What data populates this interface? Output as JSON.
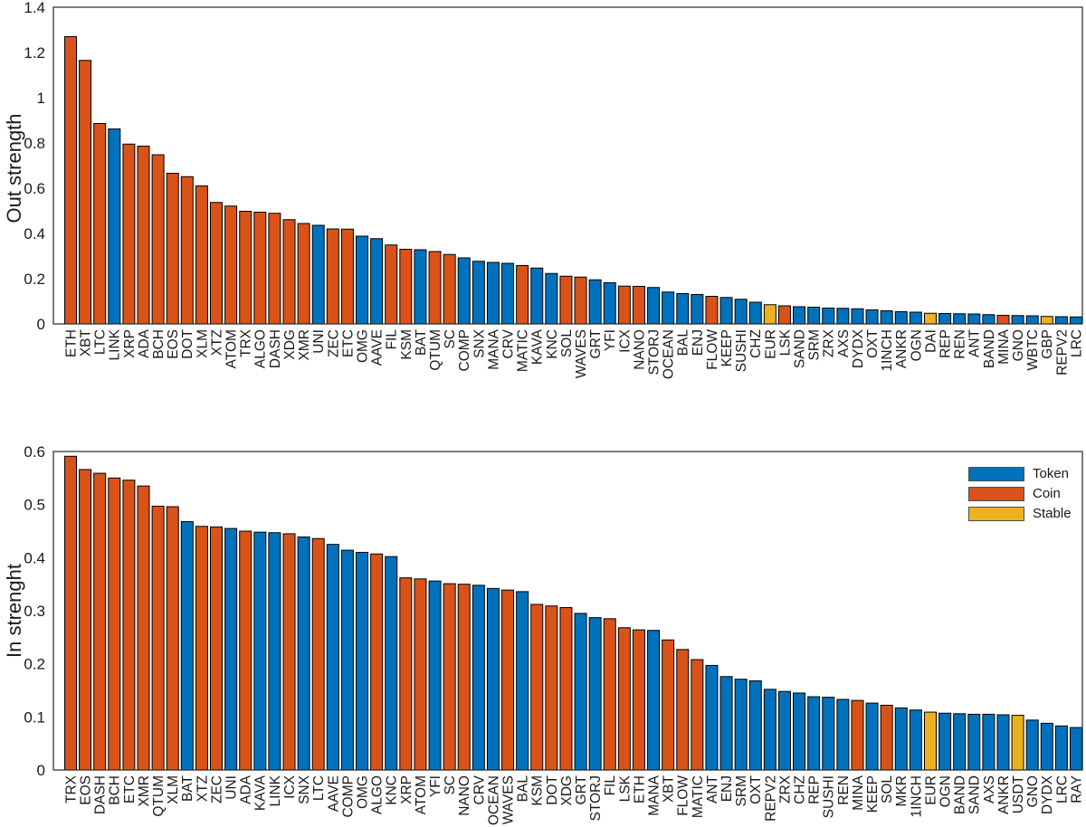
{
  "colors": {
    "token": "#0072BD",
    "coin": "#D95319",
    "stable": "#EDB120",
    "bar_edge": "#000000",
    "axis_box": "#262626"
  },
  "legend": {
    "position": "top-right-of-bottom-chart",
    "items": [
      {
        "label": "Token",
        "color_key": "token"
      },
      {
        "label": "Coin",
        "color_key": "coin"
      },
      {
        "label": "Stable",
        "color_key": "stable"
      }
    ]
  },
  "chart_data": [
    {
      "type": "bar",
      "title": "",
      "xlabel": "",
      "ylabel": "Out strength",
      "ylim": [
        0,
        1.4
      ],
      "yticks": [
        0,
        0.2,
        0.4,
        0.6,
        0.8,
        1,
        1.2,
        1.4
      ],
      "yticklabels": [
        "0",
        "0.2",
        "0.4",
        "0.6",
        "0.8",
        "1",
        "1.2",
        "1.4"
      ],
      "grid": false,
      "categories": [
        "ETH",
        "XBT",
        "LTC",
        "LINK",
        "XRP",
        "ADA",
        "BCH",
        "EOS",
        "DOT",
        "XLM",
        "XTZ",
        "ATOM",
        "TRX",
        "ALGO",
        "DASH",
        "XDG",
        "XMR",
        "UNI",
        "ZEC",
        "ETC",
        "OMG",
        "AAVE",
        "FIL",
        "KSM",
        "BAT",
        "QTUM",
        "SC",
        "COMP",
        "SNX",
        "MANA",
        "CRV",
        "MATIC",
        "KAVA",
        "KNC",
        "SOL",
        "WAVES",
        "GRT",
        "YFI",
        "ICX",
        "NANO",
        "STORJ",
        "OCEAN",
        "BAL",
        "ENJ",
        "FLOW",
        "KEEP",
        "SUSHI",
        "CHZ",
        "EUR",
        "LSK",
        "SAND",
        "SRM",
        "ZRX",
        "AXS",
        "DYDX",
        "OXT",
        "1INCH",
        "ANKR",
        "OGN",
        "DAI",
        "REP",
        "REN",
        "ANT",
        "BAND",
        "MINA",
        "GNO",
        "WBTC",
        "GBP",
        "REPV2",
        "LRC"
      ],
      "values": [
        1.27,
        1.165,
        0.886,
        0.862,
        0.795,
        0.786,
        0.748,
        0.666,
        0.651,
        0.61,
        0.537,
        0.521,
        0.498,
        0.494,
        0.489,
        0.461,
        0.444,
        0.436,
        0.42,
        0.419,
        0.388,
        0.377,
        0.349,
        0.33,
        0.328,
        0.32,
        0.307,
        0.292,
        0.277,
        0.272,
        0.268,
        0.258,
        0.247,
        0.223,
        0.211,
        0.207,
        0.195,
        0.182,
        0.167,
        0.166,
        0.161,
        0.141,
        0.134,
        0.13,
        0.122,
        0.117,
        0.109,
        0.096,
        0.085,
        0.08,
        0.076,
        0.074,
        0.07,
        0.069,
        0.067,
        0.062,
        0.058,
        0.054,
        0.052,
        0.047,
        0.046,
        0.045,
        0.044,
        0.041,
        0.038,
        0.037,
        0.036,
        0.033,
        0.032,
        0.031
      ],
      "types": [
        "coin",
        "coin",
        "coin",
        "token",
        "coin",
        "coin",
        "coin",
        "coin",
        "coin",
        "coin",
        "coin",
        "coin",
        "coin",
        "coin",
        "coin",
        "coin",
        "coin",
        "token",
        "coin",
        "coin",
        "token",
        "token",
        "coin",
        "coin",
        "token",
        "coin",
        "coin",
        "token",
        "token",
        "token",
        "token",
        "coin",
        "token",
        "token",
        "coin",
        "coin",
        "token",
        "token",
        "coin",
        "coin",
        "token",
        "token",
        "token",
        "token",
        "coin",
        "token",
        "token",
        "token",
        "stable",
        "coin",
        "token",
        "token",
        "token",
        "token",
        "token",
        "token",
        "token",
        "token",
        "token",
        "stable",
        "token",
        "token",
        "token",
        "token",
        "coin",
        "token",
        "token",
        "stable",
        "token",
        "token"
      ]
    },
    {
      "type": "bar",
      "title": "",
      "xlabel": "",
      "ylabel": "In strenght",
      "ylim": [
        0,
        0.6
      ],
      "yticks": [
        0,
        0.1,
        0.2,
        0.3,
        0.4,
        0.5,
        0.6
      ],
      "yticklabels": [
        "0",
        "0.1",
        "0.2",
        "0.3",
        "0.4",
        "0.5",
        "0.6"
      ],
      "grid": false,
      "legend_position": "top-right",
      "categories": [
        "TRX",
        "EOS",
        "DASH",
        "BCH",
        "ETC",
        "XMR",
        "QTUM",
        "XLM",
        "BAT",
        "XTZ",
        "ZEC",
        "UNI",
        "ADA",
        "KAVA",
        "LINK",
        "ICX",
        "SNX",
        "LTC",
        "AAVE",
        "COMP",
        "OMG",
        "ALGO",
        "KNC",
        "XRP",
        "ATOM",
        "YFI",
        "SC",
        "NANO",
        "CRV",
        "OCEAN",
        "WAVES",
        "BAL",
        "KSM",
        "DOT",
        "XDG",
        "GRT",
        "STORJ",
        "FIL",
        "LSK",
        "ETH",
        "MANA",
        "XBT",
        "FLOW",
        "MATIC",
        "ANT",
        "ENJ",
        "SRM",
        "OXT",
        "REPV2",
        "ZRX",
        "CHZ",
        "REP",
        "SUSHI",
        "REN",
        "MINA",
        "KEEP",
        "SOL",
        "MKR",
        "1INCH",
        "EUR",
        "OGN",
        "BAND",
        "SAND",
        "AXS",
        "ANKR",
        "USDT",
        "GNO",
        "DYDX",
        "LRC",
        "RAY"
      ],
      "values": [
        0.591,
        0.566,
        0.559,
        0.55,
        0.546,
        0.535,
        0.497,
        0.496,
        0.468,
        0.459,
        0.458,
        0.455,
        0.45,
        0.448,
        0.447,
        0.445,
        0.439,
        0.436,
        0.425,
        0.414,
        0.41,
        0.407,
        0.402,
        0.362,
        0.36,
        0.356,
        0.351,
        0.35,
        0.348,
        0.342,
        0.339,
        0.336,
        0.312,
        0.309,
        0.306,
        0.295,
        0.287,
        0.285,
        0.268,
        0.264,
        0.263,
        0.245,
        0.227,
        0.208,
        0.197,
        0.176,
        0.171,
        0.168,
        0.152,
        0.148,
        0.145,
        0.138,
        0.137,
        0.133,
        0.131,
        0.126,
        0.122,
        0.117,
        0.113,
        0.109,
        0.107,
        0.106,
        0.105,
        0.105,
        0.104,
        0.103,
        0.094,
        0.088,
        0.083,
        0.08
      ],
      "types": [
        "coin",
        "coin",
        "coin",
        "coin",
        "coin",
        "coin",
        "coin",
        "coin",
        "token",
        "coin",
        "coin",
        "token",
        "coin",
        "token",
        "token",
        "coin",
        "token",
        "coin",
        "token",
        "token",
        "token",
        "coin",
        "token",
        "coin",
        "coin",
        "token",
        "coin",
        "coin",
        "token",
        "token",
        "coin",
        "token",
        "coin",
        "coin",
        "coin",
        "token",
        "token",
        "coin",
        "coin",
        "coin",
        "token",
        "coin",
        "coin",
        "coin",
        "token",
        "token",
        "token",
        "token",
        "token",
        "token",
        "token",
        "token",
        "token",
        "token",
        "coin",
        "token",
        "coin",
        "token",
        "token",
        "stable",
        "token",
        "token",
        "token",
        "token",
        "token",
        "stable",
        "token",
        "token",
        "token",
        "token"
      ]
    }
  ]
}
